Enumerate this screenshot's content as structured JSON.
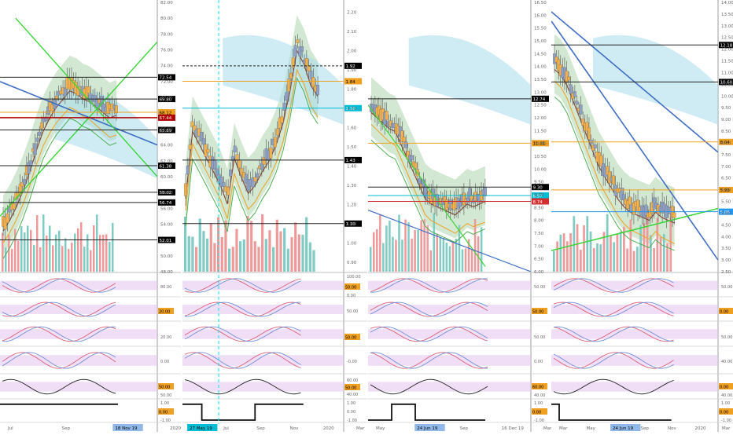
{
  "panels": [
    {
      "xlabels": [
        "Jul",
        "Sep",
        "18 Nov 19",
        "2020"
      ],
      "xlabel_highlight": "18 Nov 19",
      "yticks": [
        "82.00",
        "80.00",
        "78.00",
        "76.00",
        "74.00",
        "72.00",
        "70.00",
        "66.00",
        "64.00",
        "62.00",
        "60.00",
        "58.00",
        "56.00",
        "54.00",
        "50.00",
        "48.00"
      ],
      "price_badges": [
        {
          "label": "72.54",
          "color": "#000000"
        },
        {
          "label": "69.80",
          "color": "#000000"
        },
        {
          "label": "68.12",
          "color": "#f0a020"
        },
        {
          "label": "67.44",
          "color": "#b00000"
        },
        {
          "label": "65.89",
          "color": "#000000"
        },
        {
          "label": "61.38",
          "color": "#000000"
        },
        {
          "label": "58.02",
          "color": "#000000"
        },
        {
          "label": "56.74",
          "color": "#000000"
        },
        {
          "label": "52.01",
          "color": "#000000"
        }
      ],
      "osc_labels": [
        "80.00",
        "20.00",
        "20.00",
        "0.00",
        "50.00",
        "50.00",
        "1.00",
        "0.00",
        "-1.00"
      ]
    },
    {
      "xlabels": [
        "27 May 19",
        "Jul",
        "Sep",
        "Nov",
        "2020",
        "Mar"
      ],
      "xlabel_highlight": "27 May 19",
      "yticks": [
        "2.20",
        "2.10",
        "2.00",
        "1.90",
        "1.80",
        "1.70",
        "1.60",
        "1.50",
        "1.40",
        "1.30",
        "1.20",
        "1.10",
        "1.00",
        "0.90"
      ],
      "price_badges": [
        {
          "label": "1.92",
          "color": "#000000"
        },
        {
          "label": "1.84",
          "color": "#f0a020"
        },
        {
          "label": "1.70",
          "color": "#00bcd4"
        },
        {
          "label": "1.43",
          "color": "#000000"
        },
        {
          "label": "1.10",
          "color": "#000000"
        }
      ],
      "osc_labels": [
        "100.00",
        "50.00",
        "0.00",
        "50.00",
        "50.00",
        "-0.00",
        "60.00",
        "50.00",
        "40.00",
        "1.00",
        "0.00",
        "-1.00"
      ]
    },
    {
      "xlabels": [
        "May",
        "24 Jun 19",
        "Sep",
        "16 Dec 19",
        "Mar"
      ],
      "xlabel_highlight": "24 Jun 19",
      "yticks": [
        "16.50",
        "16.00",
        "15.50",
        "15.00",
        "14.50",
        "14.00",
        "13.50",
        "13.00",
        "12.50",
        "12.00",
        "11.50",
        "11.00",
        "10.50",
        "10.00",
        "9.50",
        "9.00",
        "8.50",
        "8.00",
        "7.50",
        "7.00",
        "6.50",
        "6.00"
      ],
      "price_badges": [
        {
          "label": "12.74",
          "color": "#000000"
        },
        {
          "label": "11.01",
          "color": "#f0a020"
        },
        {
          "label": "9.30",
          "color": "#000000"
        },
        {
          "label": "8.97",
          "color": "#00bcd4"
        },
        {
          "label": "8.74",
          "color": "#d32f2f"
        }
      ],
      "osc_labels": [
        "50.00",
        "50.00",
        "50.00",
        "0.00",
        "60.00",
        "40.00",
        "1.00",
        "0.00",
        "-1.00"
      ]
    },
    {
      "xlabels": [
        "Mar",
        "May",
        "24 Jun 19",
        "Sep",
        "Nov",
        "2020",
        "Mar"
      ],
      "xlabel_highlight": "24 Jun 19",
      "yticks": [
        "14.00",
        "13.50",
        "13.00",
        "12.50",
        "12.00",
        "11.50",
        "11.00",
        "10.50",
        "10.00",
        "9.50",
        "9.00",
        "8.50",
        "8.00",
        "7.50",
        "7.00",
        "6.50",
        "6.00",
        "5.50",
        "5.00",
        "4.50",
        "4.00",
        "3.50",
        "3.00",
        "2.50"
      ],
      "price_badges": [
        {
          "label": "12.18",
          "color": "#000000"
        },
        {
          "label": "10.60",
          "color": "#000000"
        },
        {
          "label": "8.04",
          "color": "#f0a020"
        },
        {
          "label": "5.99",
          "color": "#f0a020"
        },
        {
          "label": "5.06",
          "color": "#2196f3"
        }
      ],
      "osc_labels": [
        "50.00",
        "0.00",
        "50.00",
        "40.00",
        "0.00",
        "40.00",
        "1.00",
        "0.00",
        "-1.00"
      ]
    }
  ],
  "chart_data": [
    {
      "type": "candlestick",
      "x": [
        "Jul",
        "Sep",
        "18 Nov 19",
        "2020"
      ],
      "ylim": [
        48,
        82
      ],
      "horizontal_levels": [
        72.54,
        69.8,
        68.12,
        67.44,
        65.89,
        61.38,
        58.02,
        56.74,
        52.01
      ],
      "last_price": 68.12
    },
    {
      "type": "candlestick",
      "x": [
        "27 May 19",
        "Jul",
        "Sep",
        "Nov",
        "2020",
        "Mar"
      ],
      "ylim": [
        0.85,
        2.25
      ],
      "horizontal_levels": [
        1.92,
        1.84,
        1.7,
        1.43,
        1.1
      ],
      "last_price": 1.84
    },
    {
      "type": "candlestick",
      "x": [
        "May",
        "24 Jun 19",
        "Sep",
        "16 Dec 19",
        "Mar"
      ],
      "ylim": [
        6.0,
        16.5
      ],
      "horizontal_levels": [
        12.74,
        11.01,
        9.3,
        8.97,
        8.74
      ],
      "last_price": 8.97
    },
    {
      "type": "candlestick",
      "x": [
        "Mar",
        "May",
        "24 Jun 19",
        "Sep",
        "Nov",
        "2020",
        "Mar"
      ],
      "ylim": [
        2.5,
        14.0
      ],
      "horizontal_levels": [
        12.18,
        10.6,
        8.04,
        5.99,
        5.06
      ],
      "last_price": 5.06
    }
  ]
}
